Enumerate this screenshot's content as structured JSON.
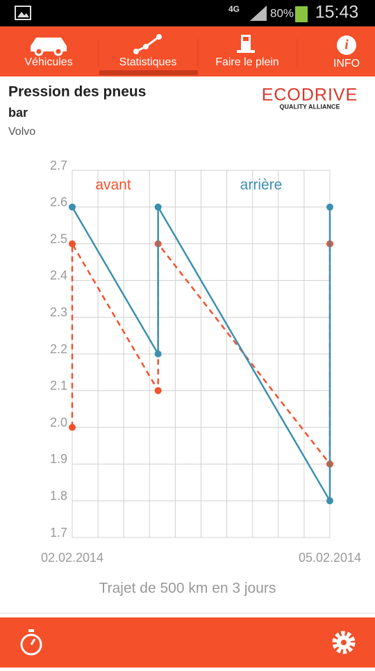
{
  "status_bar": {
    "network": "4G",
    "battery": "80%",
    "time": "15:43"
  },
  "tabs": [
    "Véhicules",
    "Statistiques",
    "Faire le plein",
    "INFO"
  ],
  "header": {
    "title": "Pression des pneus",
    "unit": "bar",
    "vehicle": "Volvo"
  },
  "logo": {
    "name": "ECODRIVE",
    "tagline": "QUALITY ALLIANCE"
  },
  "chart_data": {
    "type": "line",
    "x_label": "Trajet de 500 km en 3 jours",
    "xlim": [
      0,
      3
    ],
    "xticks": [
      {
        "value": 0,
        "label": "02.02.2014"
      },
      {
        "value": 3,
        "label": "05.02.2014"
      }
    ],
    "ylim": [
      1.7,
      2.7
    ],
    "yticks": [
      1.7,
      1.8,
      1.9,
      {
        "value": 2,
        "label": "2.0"
      },
      2.1,
      2.2,
      2.3,
      2.4,
      2.5,
      2.6,
      2.7
    ],
    "grid": true,
    "series": [
      {
        "name": "avant",
        "color": "#f4502a",
        "dashed": true,
        "x": [
          0,
          0,
          1,
          1,
          3,
          3
        ],
        "values": [
          2.0,
          2.5,
          2.1,
          2.5,
          1.9,
          2.5
        ]
      },
      {
        "name": "arrière",
        "color": "#3b8fb1",
        "dashed": false,
        "x": [
          0,
          1,
          1,
          3,
          3
        ],
        "values": [
          2.6,
          2.2,
          2.6,
          1.8,
          2.6
        ]
      }
    ]
  }
}
